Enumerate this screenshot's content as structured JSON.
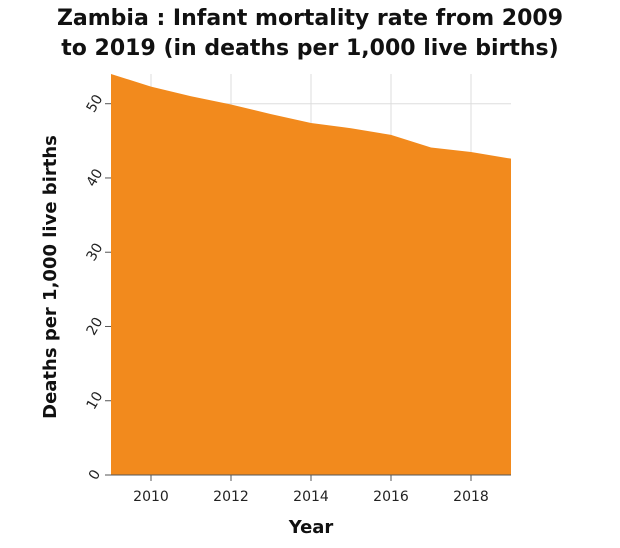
{
  "chart_data": {
    "type": "area",
    "title_line1": "Zambia : Infant mortality rate from 2009",
    "title_line2": "to 2019 (in deaths per 1,000 live births)",
    "xlabel": "Year",
    "ylabel": "Deaths per 1,000 live births",
    "x": [
      2009,
      2010,
      2011,
      2012,
      2013,
      2014,
      2015,
      2016,
      2017,
      2018,
      2019
    ],
    "values": [
      54.0,
      52.3,
      51.0,
      49.9,
      48.6,
      47.4,
      46.7,
      45.8,
      44.1,
      43.5,
      42.6
    ],
    "xlim": [
      2009,
      2019
    ],
    "ylim": [
      0,
      54
    ],
    "x_ticks": [
      2010,
      2012,
      2014,
      2016,
      2018
    ],
    "y_ticks": [
      0,
      10,
      20,
      30,
      40,
      50
    ],
    "grid": true,
    "fill_color": "#f28a1d",
    "grid_color": "#dddddd"
  }
}
